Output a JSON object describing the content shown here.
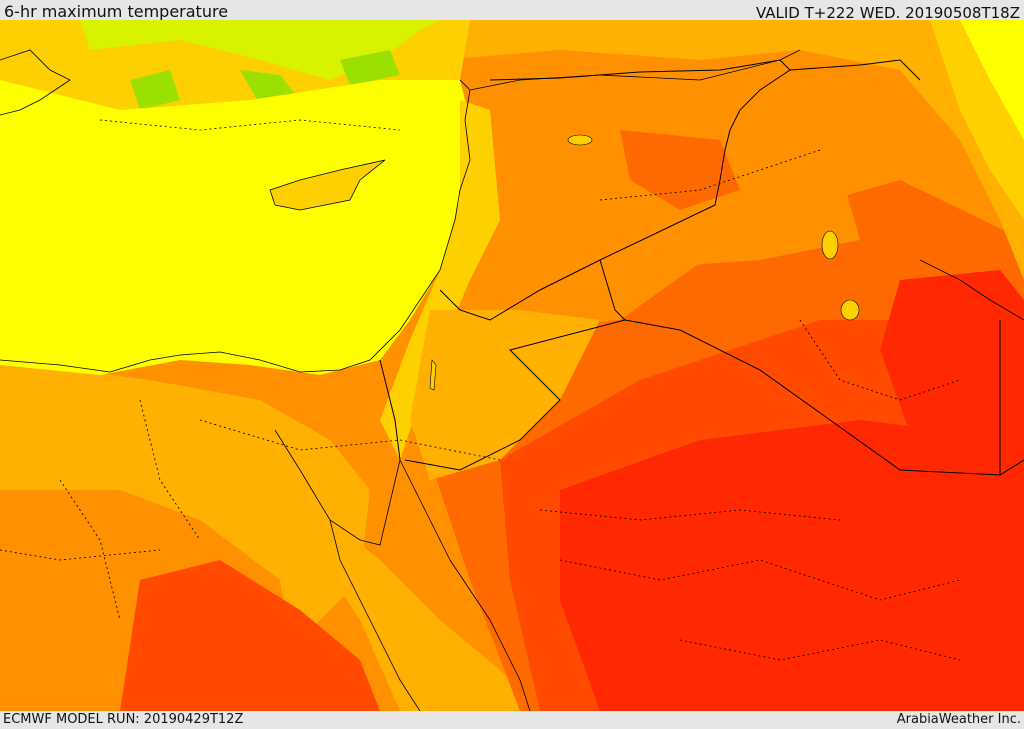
{
  "header": {
    "title": "6-hr maximum temperature",
    "valid": "VALID T+222 WED. 20190508T18Z"
  },
  "footer": {
    "model_run": "ECMWF MODEL RUN: 20190429T12Z",
    "credit": "ArabiaWeather Inc."
  },
  "colors": {
    "green": "#9be000",
    "lime": "#d8f200",
    "yellow": "#ffff00",
    "gold": "#ffd000",
    "amber": "#ffb000",
    "orange": "#ff9000",
    "dark_orange": "#ff6a00",
    "red_orange": "#ff4a00",
    "red": "#ff2800",
    "border_line": "#000000"
  },
  "map": {
    "region": "Eastern Mediterranean and Middle East",
    "field": "temperature shading"
  }
}
